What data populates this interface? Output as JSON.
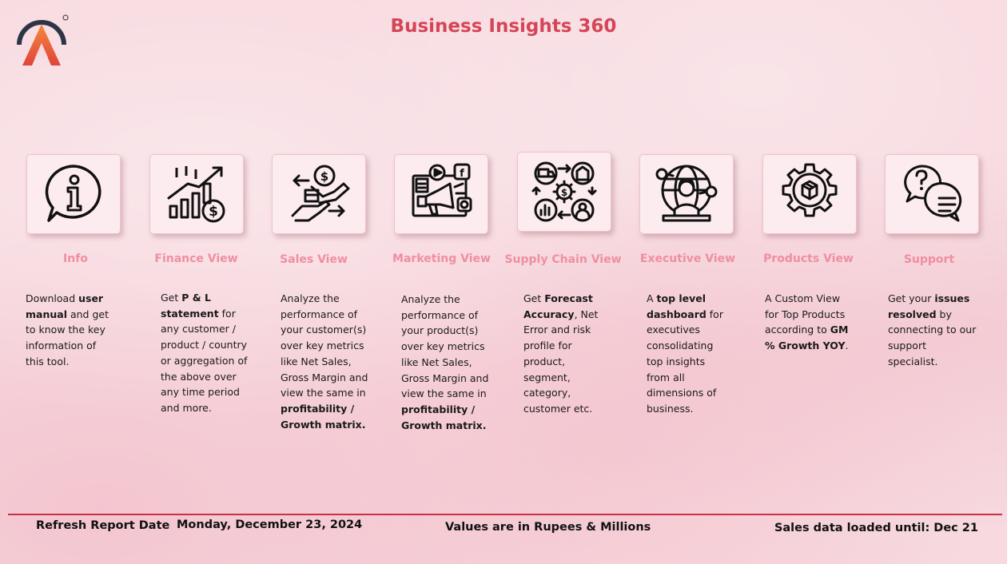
{
  "header": {
    "title": "Business Insights 360"
  },
  "brand": {
    "accent": "#d64557",
    "label_color": "#f08ea0",
    "divider_color": "#c83246"
  },
  "cards": [
    {
      "label": "Info",
      "icon": "info-icon",
      "parts": [
        [
          "Download ",
          false
        ],
        [
          "user manual",
          true
        ],
        [
          " and get to know the key information of this tool.",
          false
        ]
      ]
    },
    {
      "label": "Finance View",
      "icon": "finance-chart-icon",
      "parts": [
        [
          "Get  ",
          false
        ],
        [
          "P & L statement",
          true
        ],
        [
          " for any customer / product / country or aggregation of the above over any time period and more.",
          false
        ]
      ]
    },
    {
      "label": "Sales View",
      "icon": "sales-handshake-icon",
      "parts": [
        [
          "Analyze the performance of your customer(s) over key metrics like Net Sales, Gross Margin and view the same in ",
          false
        ],
        [
          "profitability / Growth matrix.",
          true
        ]
      ]
    },
    {
      "label": "Marketing View",
      "icon": "marketing-megaphone-icon",
      "parts": [
        [
          "Analyze the performance of your product(s) over key metrics like Net Sales, Gross Margin and view the same in ",
          false
        ],
        [
          "profitability / Growth matrix.",
          true
        ]
      ]
    },
    {
      "label": "Supply Chain View",
      "icon": "supply-chain-icon",
      "parts": [
        [
          "Get ",
          false
        ],
        [
          "Forecast Accuracy",
          true
        ],
        [
          ", Net Error and risk profile for product, segment, category, customer etc.",
          false
        ]
      ]
    },
    {
      "label": "Executive View",
      "icon": "executive-icon",
      "parts": [
        [
          "A ",
          false
        ],
        [
          "top level dashboard",
          true
        ],
        [
          " for executives consolidating top insights from all dimensions of business.",
          false
        ]
      ]
    },
    {
      "label": "Products View",
      "icon": "products-gear-icon",
      "parts": [
        [
          "A Custom View for Top Products according to ",
          false
        ],
        [
          "GM % Growth YOY",
          true
        ],
        [
          ".",
          false
        ]
      ]
    },
    {
      "label": "Support",
      "icon": "support-chat-icon",
      "parts": [
        [
          "Get your ",
          false
        ],
        [
          "issues resolved",
          true
        ],
        [
          " by connecting to our support specialist.",
          false
        ]
      ]
    }
  ],
  "footer": {
    "refresh_label": "Refresh Report Date",
    "refresh_date": "Monday, December 23, 2024",
    "units_note": "Values are in Rupees & Millions",
    "loaded_until": "Sales data loaded until: Dec 21"
  }
}
